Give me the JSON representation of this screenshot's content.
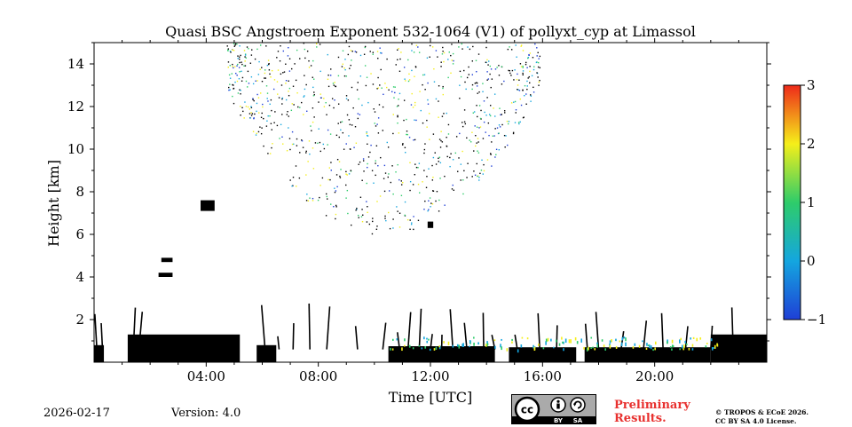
{
  "chart_data": {
    "type": "heatmap",
    "title": "Quasi BSC Angstroem Exponent 532-1064 (V1) of pollyxt_cyp at Limassol",
    "xlabel": "Time [UTC]",
    "ylabel": "Height [km]",
    "x_unit": "hours UTC",
    "xlim": [
      0,
      24
    ],
    "ylim": [
      0,
      15
    ],
    "x_ticks": [
      4,
      8,
      12,
      16,
      20
    ],
    "x_tick_labels": [
      "04:00",
      "08:00",
      "12:00",
      "16:00",
      "20:00"
    ],
    "y_ticks": [
      2,
      4,
      6,
      8,
      10,
      12,
      14
    ],
    "y_tick_labels": [
      "2",
      "4",
      "6",
      "8",
      "10",
      "12",
      "14"
    ],
    "colorbar": {
      "vmin": -1,
      "vmax": 3,
      "ticks": [
        -1,
        0,
        1,
        2,
        3
      ],
      "tick_labels": [
        "−1",
        "0",
        "1",
        "2",
        "3"
      ],
      "colors": [
        "#1f3fd6",
        "#14a6df",
        "#2ecc6a",
        "#f5ef1a",
        "#ee2a1a"
      ]
    },
    "masked_color": "#000000",
    "masked_regions": [
      {
        "t0": 0.0,
        "t1": 0.35,
        "h0": 0.0,
        "h1": 0.8
      },
      {
        "t0": 1.2,
        "t1": 5.2,
        "h0": 0.0,
        "h1": 1.3
      },
      {
        "t0": 5.8,
        "t1": 6.5,
        "h0": 0.0,
        "h1": 0.8
      },
      {
        "t0": 10.5,
        "t1": 14.3,
        "h0": 0.0,
        "h1": 0.75
      },
      {
        "t0": 14.8,
        "t1": 17.2,
        "h0": 0.0,
        "h1": 0.7
      },
      {
        "t0": 17.5,
        "t1": 22.0,
        "h0": 0.0,
        "h1": 0.7
      },
      {
        "t0": 22.0,
        "t1": 24.0,
        "h0": 0.0,
        "h1": 1.3
      },
      {
        "t0": 2.3,
        "t1": 2.8,
        "h0": 4.0,
        "h1": 4.2
      },
      {
        "t0": 2.4,
        "t1": 2.8,
        "h0": 4.7,
        "h1": 4.9
      },
      {
        "t0": 3.8,
        "t1": 4.3,
        "h0": 7.1,
        "h1": 7.6
      },
      {
        "t0": 11.9,
        "t1": 12.1,
        "h0": 6.3,
        "h1": 6.6
      }
    ],
    "streak_times": [
      0.1,
      0.3,
      1.4,
      1.6,
      6.1,
      6.6,
      7.1,
      7.7,
      8.3,
      9.4,
      10.3,
      10.9,
      11.2,
      11.6,
      12.0,
      12.4,
      12.8,
      13.3,
      13.9,
      14.3,
      15.1,
      15.9,
      16.5,
      17.6,
      18.0,
      18.8,
      19.6,
      20.3,
      21.1,
      22.0,
      22.8,
      23.9
    ],
    "cirrus_region": {
      "t_start": 4.7,
      "t_end": 15.9,
      "h_min": 6.0,
      "h_max": 15.0
    },
    "low_band": {
      "t_start": 10.5,
      "t_end": 22.3,
      "h_min": 0.6,
      "h_max": 1.2
    }
  },
  "footer": {
    "date": "2026-02-17",
    "version": "Version: 4.0",
    "prelim_line1": "Preliminary",
    "prelim_line2": "Results.",
    "copyright_line1": "© TROPOS & ECoE 2026.",
    "copyright_line2": "CC BY SA 4.0 License."
  },
  "license_badge": {
    "cc": "cc",
    "by": "BY",
    "sa": "SA"
  }
}
